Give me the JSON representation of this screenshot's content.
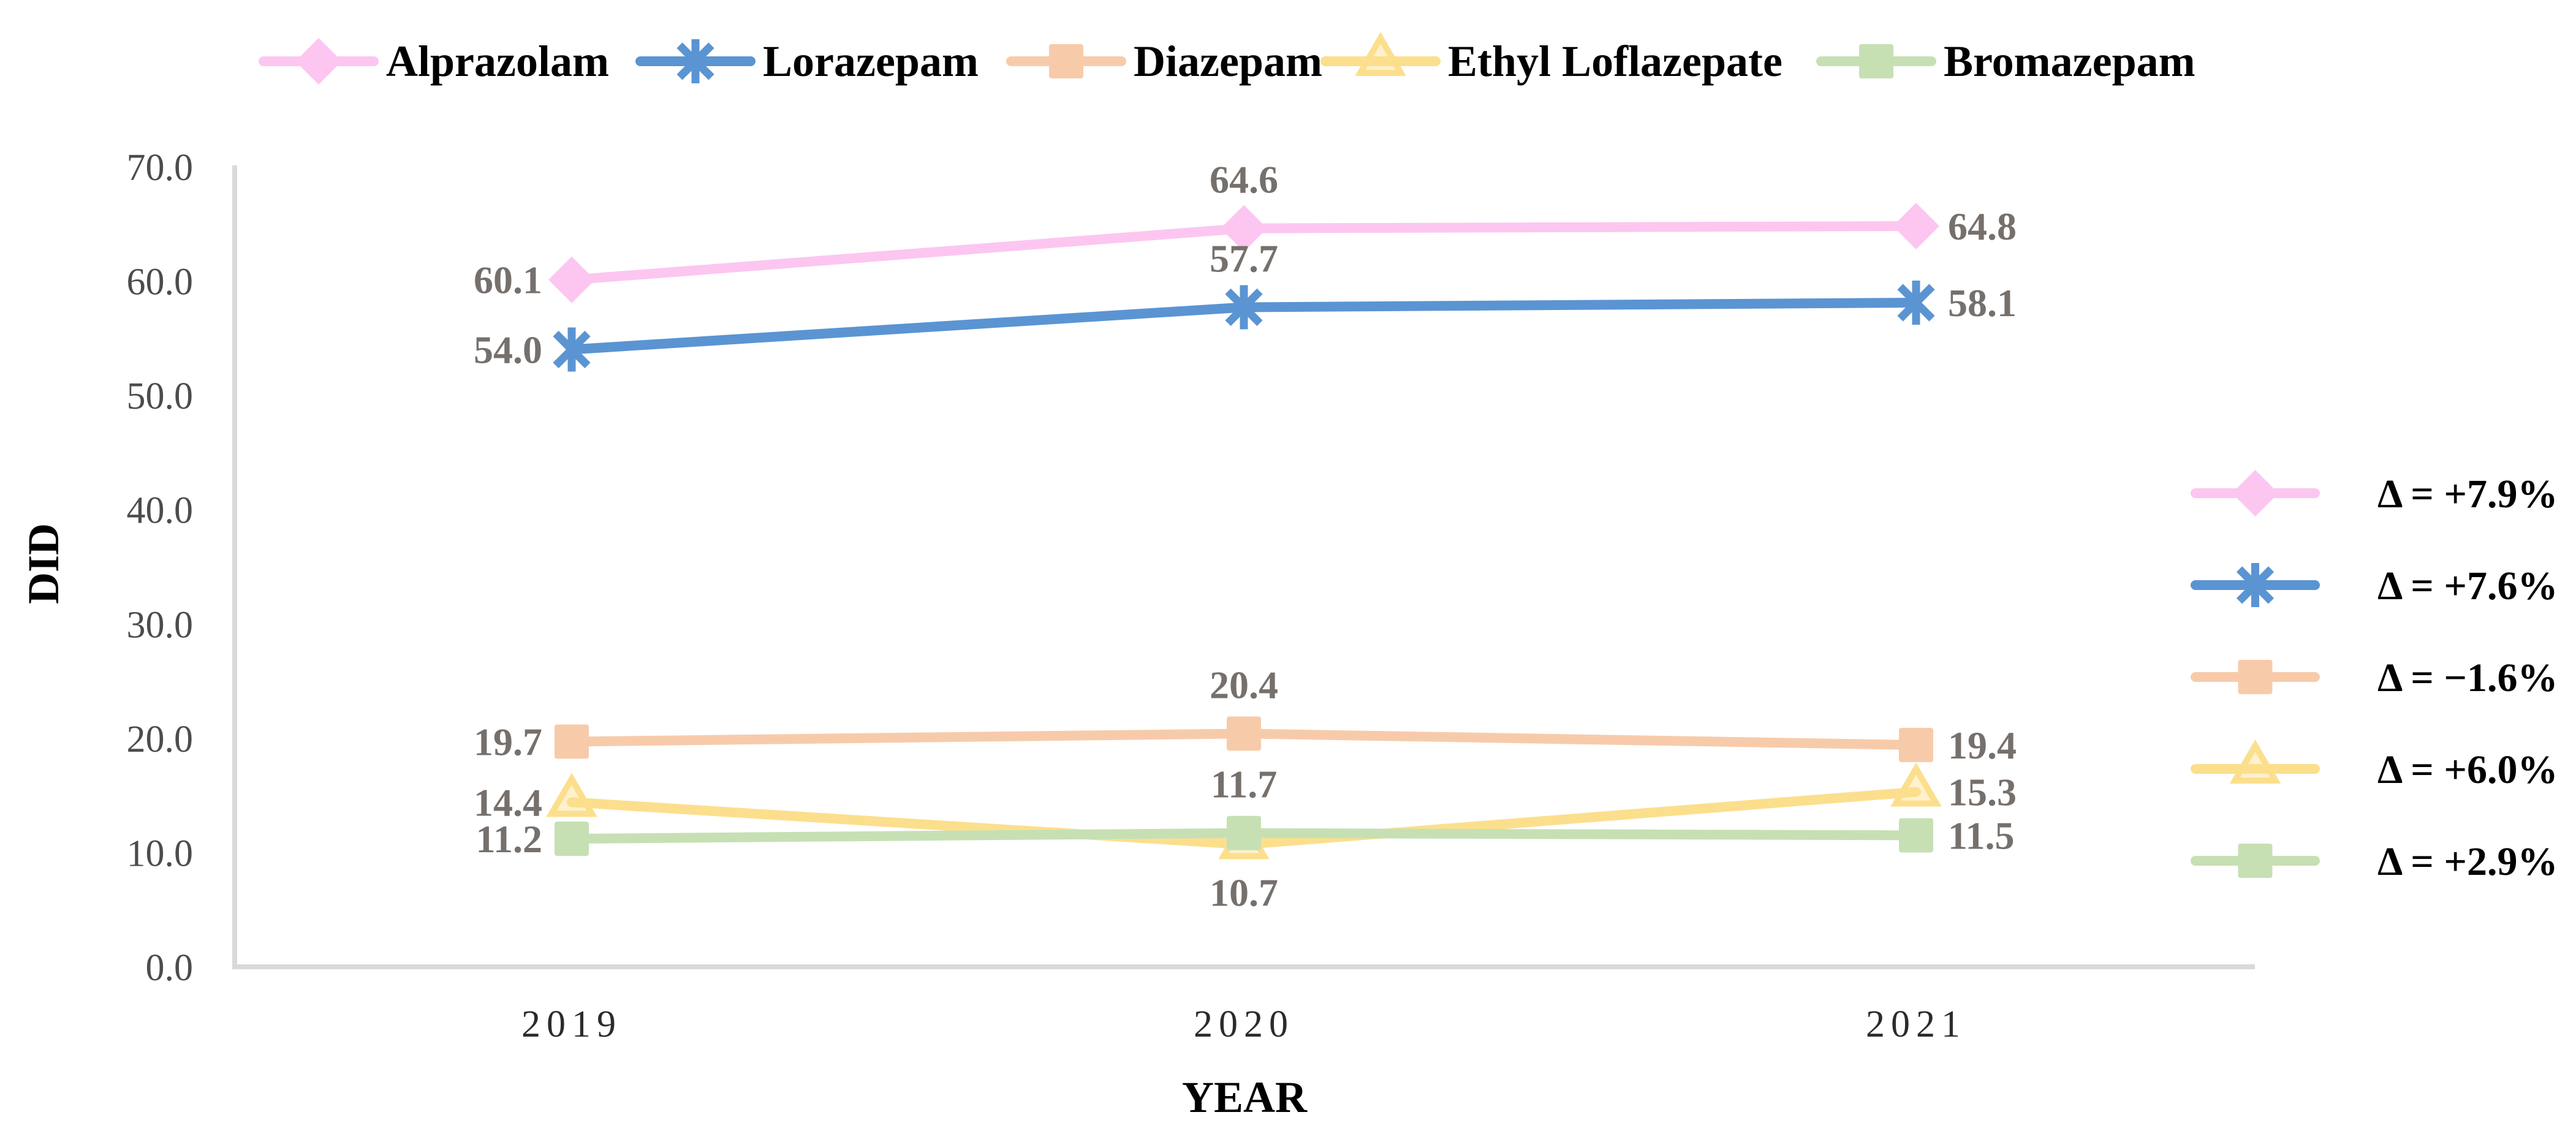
{
  "page": {
    "background": "#ffffff"
  },
  "chart_data": {
    "type": "line",
    "title": "",
    "xlabel": "YEAR",
    "ylabel": "DID",
    "categories": [
      "2019",
      "2020",
      "2021"
    ],
    "y_ticks": [
      "0.0",
      "10.0",
      "20.0",
      "30.0",
      "40.0",
      "50.0",
      "60.0",
      "70.0"
    ],
    "ylim": [
      0,
      70
    ],
    "grid": false,
    "legend_position": "top",
    "series": [
      {
        "name": "Alprazolam",
        "marker": "diamond",
        "color": "#fcc6f0",
        "values": [
          60.1,
          64.6,
          64.8
        ],
        "point_labels": [
          "60.1",
          "64.6",
          "64.8"
        ],
        "point_label_positions": [
          "left",
          "above",
          "right"
        ],
        "delta_label": "Δ = +7.9%"
      },
      {
        "name": "Lorazepam",
        "marker": "asterisk",
        "color": "#5b94d2",
        "values": [
          54.0,
          57.7,
          58.1
        ],
        "point_labels": [
          "54.0",
          "57.7",
          "58.1"
        ],
        "point_label_positions": [
          "left",
          "above",
          "right"
        ],
        "delta_label": "Δ = +7.6%"
      },
      {
        "name": "Diazepam",
        "marker": "square",
        "color": "#f7cbaa",
        "values": [
          19.7,
          20.4,
          19.4
        ],
        "point_labels": [
          "19.7",
          "20.4",
          "19.4"
        ],
        "point_label_positions": [
          "left",
          "above",
          "right"
        ],
        "delta_label": "Δ = −1.6%"
      },
      {
        "name": "Ethyl Loflazepate",
        "marker": "triangle",
        "color": "#fcdf8d",
        "values": [
          14.4,
          10.7,
          15.3
        ],
        "point_labels": [
          "14.4",
          "10.7",
          "15.3"
        ],
        "point_label_positions": [
          "left",
          "below",
          "right"
        ],
        "delta_label": "Δ = +6.0%"
      },
      {
        "name": "Bromazepam",
        "marker": "square",
        "color": "#c6e0b4",
        "values": [
          11.2,
          11.7,
          11.5
        ],
        "point_labels": [
          "11.2",
          "11.7",
          "11.5"
        ],
        "point_label_positions": [
          "left",
          "above",
          "right"
        ],
        "delta_label": "Δ = +2.9%"
      }
    ],
    "colors": {
      "axis_line": "#d9d9d9",
      "tick_text": "#4c4c4c",
      "category_text": "#2b2b2b",
      "data_label_text": "#76706c",
      "title_text": "#000000"
    }
  }
}
